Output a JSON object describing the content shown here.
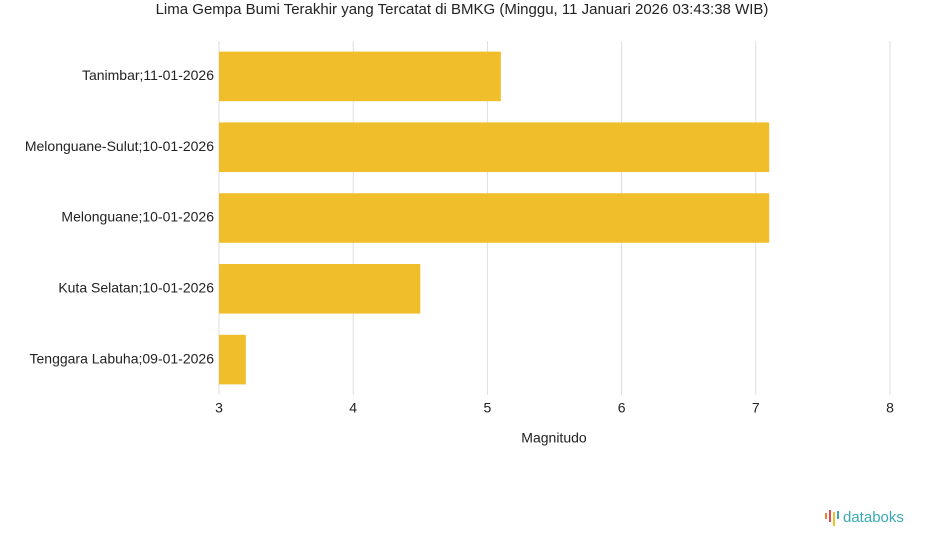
{
  "chart_data": {
    "type": "bar",
    "orientation": "horizontal",
    "title": "Lima Gempa Bumi Terakhir yang Tercatat di BMKG (Minggu, 11 Januari 2026 03:43:38 WIB)",
    "categories": [
      "Tanimbar;11-01-2026",
      "Melonguane-Sulut;10-01-2026",
      "Melonguane;10-01-2026",
      "Kuta Selatan;10-01-2026",
      "Tenggara Labuha;09-01-2026"
    ],
    "values": [
      5.1,
      7.1,
      7.1,
      4.5,
      3.2
    ],
    "color": "#f0be2b",
    "x_label": "Magnitudo",
    "xlim": [
      3,
      8
    ],
    "xticks": [
      3,
      4,
      5,
      6,
      7,
      8
    ],
    "grid": true,
    "watermark": "databoks"
  }
}
